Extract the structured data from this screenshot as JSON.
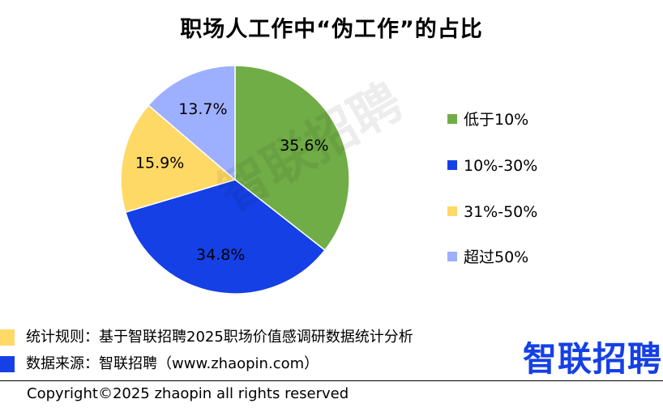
{
  "chart_data": {
    "type": "pie",
    "title": "职场人工作中“伪工作”的占比",
    "categories": [
      "低于10%",
      "10%-30%",
      "31%-50%",
      "超过50%"
    ],
    "values": [
      35.6,
      34.8,
      15.9,
      13.7
    ],
    "value_labels": [
      "35.6%",
      "34.8%",
      "15.9%",
      "13.7%"
    ],
    "colors": [
      "#70ad47",
      "#1540e6",
      "#ffd966",
      "#9dafff"
    ],
    "legend_position": "right",
    "start_angle": "12 o'clock, clockwise"
  },
  "watermark": "智联招聘",
  "notes": [
    {
      "text": "统计规则：基于智联招聘2025职场价值感调研数据统计分析",
      "color": "#ffd966"
    },
    {
      "text": "数据来源：智联招聘（www.zhaopin.com）",
      "color": "#1540e6"
    }
  ],
  "brand": {
    "logo_text": "智联招聘",
    "color": "#1540e6"
  },
  "copyright": "Copyright©2025 zhaopin all rights reserved"
}
